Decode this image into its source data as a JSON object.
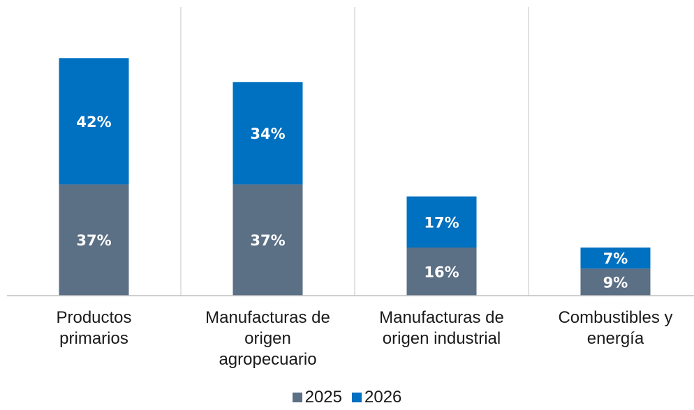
{
  "chart_data": {
    "type": "bar",
    "stacked": true,
    "categories": [
      "Productos\nprimarios",
      "Manufacturas de\norigen\nagropecuario",
      "Manufacturas de\norigen industrial",
      "Combustibles y\nenergía"
    ],
    "series": [
      {
        "name": "2025",
        "values": [
          37,
          37,
          16,
          9
        ],
        "labels": [
          "37%",
          "37%",
          "16%",
          "9%"
        ],
        "color": "#5b6f85"
      },
      {
        "name": "2026",
        "values": [
          42,
          34,
          17,
          7
        ],
        "labels": [
          "42%",
          "34%",
          "17%",
          "7%"
        ],
        "color": "#0070c0"
      }
    ],
    "ylim": [
      0,
      96
    ],
    "grid": "vertical category dividers",
    "legend": "bottom-center"
  }
}
